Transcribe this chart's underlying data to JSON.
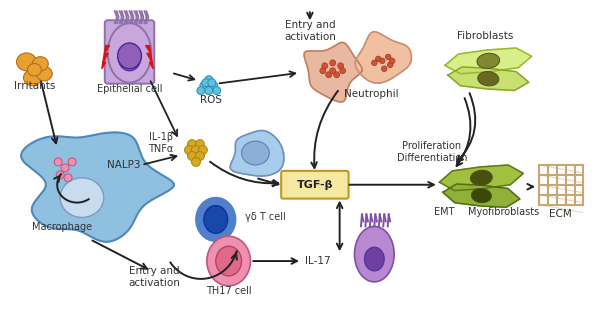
{
  "bg_color": "#ffffff",
  "figsize": [
    6.0,
    3.11
  ],
  "dpi": 100,
  "labels": {
    "irritants": "Irritants",
    "epithelial": "Epithelial cell",
    "ros": "ROS",
    "entry_activation_top": "Entry and\nactivation",
    "il1b_tnfa": "IL-1β\nTNFα",
    "nalp3": "NALP3",
    "macrophage": "Macrophage",
    "tgfb": "TGF-β",
    "neutrophil": "Neutrophil",
    "fibroblasts": "Fibroblasts",
    "prolif_diff": "Proliferation\nDifferentiation",
    "emt": "EMT",
    "myofibroblasts": "Myofibroblasts",
    "ecm": "ECM",
    "gamma_delta": "γδ T cell",
    "entry_activation_bot": "Entry and\nactivation",
    "th17": "TH17 cell",
    "il17": "IL-17"
  },
  "colors": {
    "irritant": "#E8A030",
    "irritant_outline": "#B07020",
    "epithelial_body": "#C8A8DC",
    "epithelial_outline": "#9070A8",
    "epithelial_nucleus": "#9060B8",
    "red_lightning": "#DD1111",
    "ros_dot": "#60C0E0",
    "ros_outline": "#2890B0",
    "neut_body1": "#E8B8A0",
    "neut_outline1": "#C08060",
    "neut_spot": "#CC5533",
    "neut_body2": "#F0C0A0",
    "neut_outline2": "#C89070",
    "mono_body": "#A8CCEC",
    "mono_outline": "#7090C0",
    "mono_nucleus": "#8AB0D8",
    "macro_body": "#90C0E0",
    "macro_outline": "#5088B8",
    "macro_nucleus": "#C8DCF0",
    "macro_dots": "#F090B0",
    "il_dot": "#D4A822",
    "il_outline": "#B08010",
    "tgfb_fill": "#F5E8A0",
    "tgfb_outline": "#C09828",
    "fibro_body1": "#D8EE88",
    "fibro_outline1": "#9AB830",
    "fibro_nuc1": "#808830",
    "fibro_body2": "#C8E070",
    "fibro_outline2": "#88A828",
    "fibro_nuc2": "#686820",
    "myo_body1": "#A0C040",
    "myo_outline1": "#607818",
    "myo_nuc1": "#485010",
    "myo_body2": "#90B038",
    "myo_outline2": "#507010",
    "myo_nuc2": "#384808",
    "ecm_color": "#C8A870",
    "gd_outer": "#5080CC",
    "gd_inner": "#1848A8",
    "th17_outer": "#F090B0",
    "th17_inner": "#E06888",
    "purple_body": "#B888D0",
    "purple_outline": "#8050A8",
    "purple_nucleus": "#7040A0",
    "arrow": "#222222",
    "text": "#333333"
  }
}
